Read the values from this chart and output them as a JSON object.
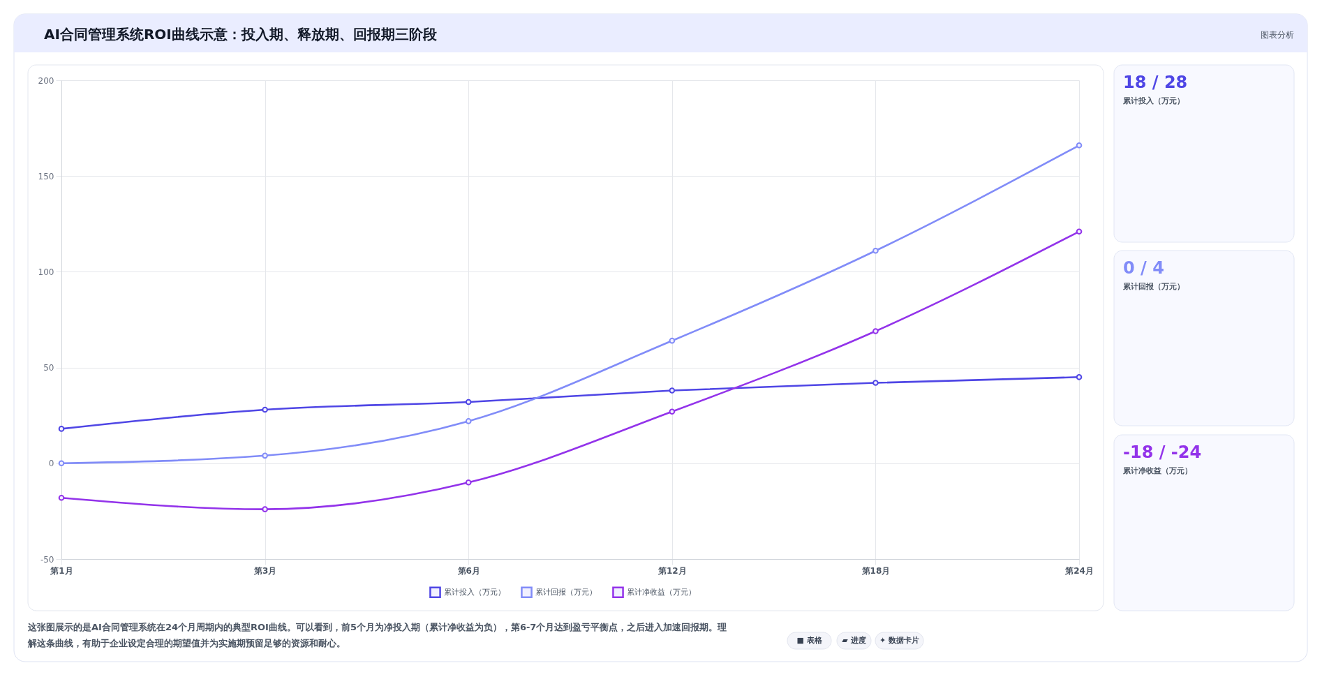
{
  "chart_data": {
    "type": "line",
    "title": "AI合同管理系统ROI曲线示意：投入期、释放期、回报期三阶段",
    "categories": [
      "第1月",
      "第3月",
      "第6月",
      "第12月",
      "第18月",
      "第24月"
    ],
    "series": [
      {
        "name": "累计投入（万元）",
        "color": "#4f46e5",
        "values": [
          18,
          28,
          32,
          38,
          42,
          45
        ]
      },
      {
        "name": "累计回报（万元）",
        "color": "#818cf8",
        "values": [
          0,
          4,
          22,
          64,
          111,
          166
        ]
      },
      {
        "name": "累计净收益（万元）",
        "color": "#9333ea",
        "values": [
          -18,
          -24,
          -10,
          27,
          69,
          121
        ]
      }
    ],
    "ylim": [
      -50,
      200
    ],
    "yticks": [
      -50,
      0,
      50,
      100,
      150,
      200
    ],
    "grid": true,
    "legend": "bottom",
    "marker": "circle",
    "line_style": "solid",
    "annotations": [
      "图表分析",
      "18 / 28",
      "0 / 4",
      "-18 / -24",
      "这张图展示的是AI合同管理系统在24个月周期内的典型ROI曲线。可以看到，前5个月为净投入期（累计净收益为负），第6-7个月达到盈亏平衡点，之后进入加速回报期。理解这条曲线，有助于企业设定合理的期望值并为实施期预留足够的资源和耐心。",
      "■ 表格",
      "▰ 进度",
      "✦ 数据卡片"
    ]
  }
}
